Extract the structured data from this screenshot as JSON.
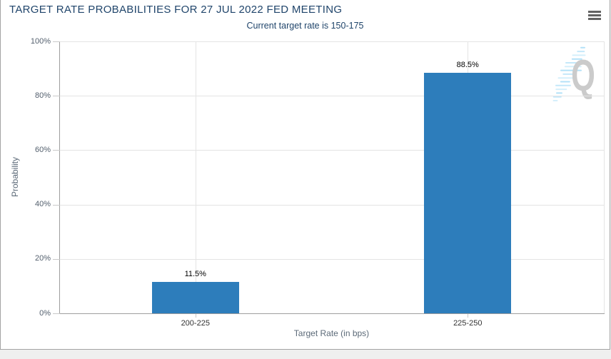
{
  "header": {
    "title": "TARGET RATE PROBABILITIES FOR 27 JUL 2022 FED MEETING",
    "subtitle": "Current target rate is 150-175"
  },
  "chart_data": {
    "type": "bar",
    "title": "TARGET RATE PROBABILITIES FOR 27 JUL 2022 FED MEETING",
    "subtitle": "Current target rate is 150-175",
    "categories": [
      "200-225",
      "225-250"
    ],
    "values": [
      11.5,
      88.5
    ],
    "value_labels": [
      "11.5%",
      "88.5%"
    ],
    "xlabel": "Target Rate (in bps)",
    "ylabel": "Probability",
    "ylim": [
      0,
      100
    ],
    "ytick_values": [
      0,
      20,
      40,
      60,
      80,
      100
    ],
    "ytick_labels": [
      "0%",
      "20%",
      "40%",
      "60%",
      "80%",
      "100%"
    ],
    "grid": true,
    "legend": "none",
    "bar_color": "#2d7dbb"
  },
  "watermark": {
    "letter": "Q"
  },
  "colors": {
    "title": "#20456b",
    "bar": "#2d7dbb",
    "grid": "#e4e4e4",
    "axis_line": "#9e9e9e",
    "tick": "#c9c9c9",
    "ytick_label": "#54606e",
    "xtick_label": "#333333",
    "value_label": "#000000",
    "axis_title": "#5c6a78",
    "watermark_letter": "#cbcbcb",
    "watermark_lines": "#b3e1f8",
    "page_background": "#efefef",
    "card_border": "#a3a3a3"
  }
}
